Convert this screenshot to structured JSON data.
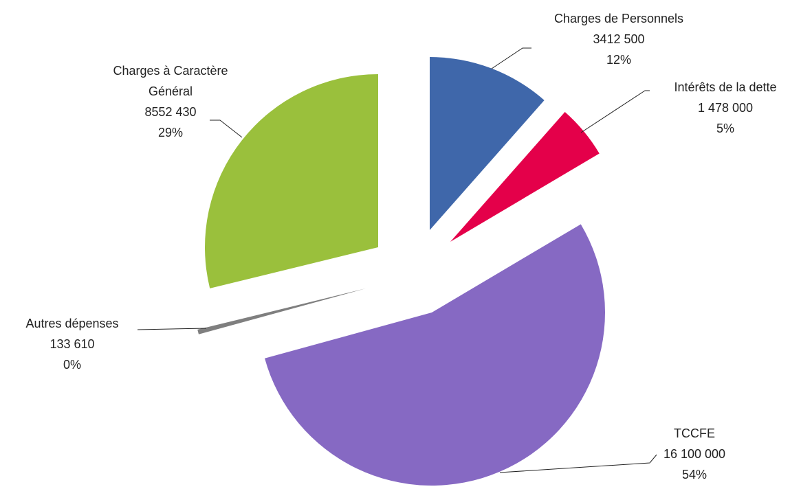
{
  "chart_data": {
    "type": "pie",
    "categories": [
      "Charges de Personnels",
      "Intérêts de la dette",
      "TCCFE",
      "Autres dépenses",
      "Charges à Caractère Général"
    ],
    "values": [
      3412500,
      1478000,
      16100000,
      133610,
      8552430
    ],
    "value_labels": [
      "3412 500",
      "1 478 000",
      "16 100 000",
      "133 610",
      "8552 430"
    ],
    "percent_labels": [
      "12%",
      "5%",
      "54%",
      "0%",
      "29%"
    ],
    "colors": [
      "#3f67aa",
      "#e4004a",
      "#8669c3",
      "#7f7f7f",
      "#9ac03c"
    ]
  }
}
